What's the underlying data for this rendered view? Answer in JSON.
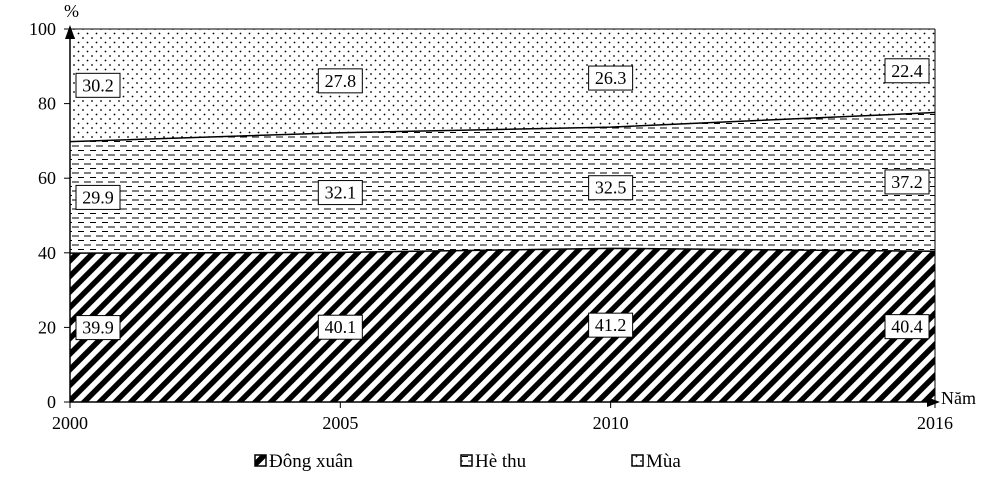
{
  "chart_data": {
    "type": "area",
    "stacked": true,
    "x": [
      2000,
      2005,
      2010,
      2016
    ],
    "x_tick_labels": [
      "2000",
      "2005",
      "2010",
      "2016"
    ],
    "xlim": [
      2000,
      2016
    ],
    "ylim": [
      0,
      100
    ],
    "y_ticks": [
      0,
      20,
      40,
      60,
      80,
      100
    ],
    "y_tick_labels": [
      "0",
      "20",
      "40",
      "60",
      "80",
      "100"
    ],
    "ylabel": "%",
    "xlabel": "Năm",
    "series": [
      {
        "name": "Đông xuân",
        "values": [
          39.9,
          40.1,
          41.2,
          40.4
        ],
        "labels": [
          "39.9",
          "40.1",
          "41.2",
          "40.4"
        ],
        "pattern": "diagonal-hatch"
      },
      {
        "name": "Hè thu",
        "values": [
          29.9,
          32.1,
          32.5,
          37.2
        ],
        "labels": [
          "29.9",
          "32.1",
          "32.5",
          "37.2"
        ],
        "pattern": "dashed-horizontal"
      },
      {
        "name": "Mùa",
        "values": [
          30.2,
          27.8,
          26.3,
          22.4
        ],
        "labels": [
          "30.2",
          "27.8",
          "26.3",
          "22.4"
        ],
        "pattern": "dots"
      }
    ],
    "legend_position": "bottom-center",
    "grid": false
  }
}
